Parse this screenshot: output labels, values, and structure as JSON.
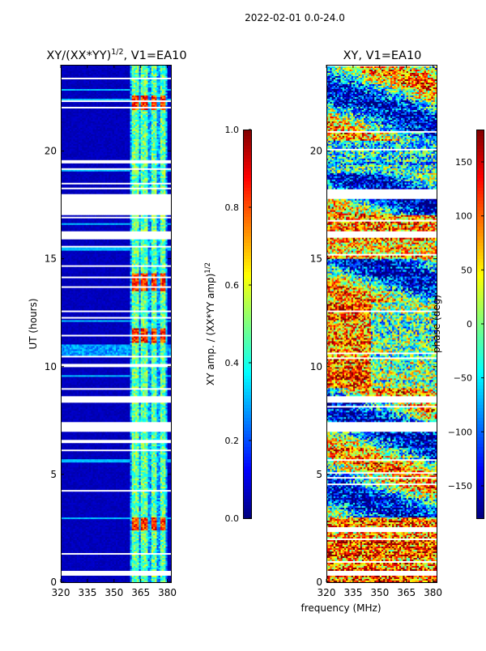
{
  "figure": {
    "suptitle": "2022-02-01 0.0-24.0",
    "shared_xlabel": "frequency (MHz)"
  },
  "colors": {
    "jet": [
      "#00007f",
      "#0000ff",
      "#007fff",
      "#00ffff",
      "#7fff7f",
      "#ffff00",
      "#ff7f00",
      "#ff0000",
      "#7f0000"
    ],
    "axis": "#000000",
    "gap": "#ffffff"
  },
  "chart_data": [
    {
      "type": "heatmap",
      "title_main": "XY/(XX*YY)",
      "title_exp": "1/2",
      "title_tail": ", V1=EA10",
      "xlabel": "",
      "ylabel": "UT (hours)",
      "xlim": [
        320,
        382
      ],
      "ylim": [
        0,
        24
      ],
      "xticks": [
        320,
        335,
        350,
        365,
        380
      ],
      "xtick_labels": [
        "320",
        "335",
        "350",
        "365",
        "380"
      ],
      "yticks": [
        0,
        5,
        10,
        15,
        20
      ],
      "ytick_labels": [
        "0",
        "5",
        "10",
        "15",
        "20"
      ],
      "bright_channel_ranges_mhz": [
        [
          360,
          364
        ],
        [
          365,
          369
        ],
        [
          371,
          374
        ],
        [
          376,
          379
        ]
      ],
      "high_amplitude_hours": [
        [
          2.4,
          3.0
        ],
        [
          13.5,
          14.3
        ],
        [
          11.1,
          11.8
        ],
        [
          21.9,
          22.6
        ]
      ],
      "flagged_hours": [
        [
          16.0,
          16.3
        ],
        [
          17.0,
          18.0
        ],
        [
          19.4,
          19.6
        ],
        [
          8.3,
          8.6
        ],
        [
          7.0,
          7.4
        ],
        [
          0.3,
          0.5
        ],
        [
          10.0,
          10.1
        ],
        [
          12.5,
          12.6
        ],
        [
          4.2,
          4.3
        ]
      ],
      "colorbar": {
        "label_main": "XY amp. / (XX*YY amp)",
        "label_exp": "1/2",
        "ticks": [
          0.0,
          0.2,
          0.4,
          0.6,
          0.8,
          1.0
        ],
        "tick_labels": [
          "0.0",
          "0.2",
          "0.4",
          "0.6",
          "0.8",
          "1.0"
        ],
        "range": [
          0,
          1
        ]
      }
    },
    {
      "type": "heatmap",
      "title": "XY, V1=EA10",
      "xlabel": "frequency (MHz)",
      "ylabel": "",
      "xlim": [
        320,
        382
      ],
      "ylim": [
        0,
        24
      ],
      "xticks": [
        320,
        335,
        350,
        365,
        380
      ],
      "xtick_labels": [
        "320",
        "335",
        "350",
        "365",
        "380"
      ],
      "yticks": [
        0,
        5,
        10,
        15,
        20
      ],
      "ytick_labels": [
        "0",
        "5",
        "10",
        "15",
        "20"
      ],
      "flagged_hours": [
        [
          17.8,
          18.2
        ],
        [
          8.3,
          8.6
        ],
        [
          7.0,
          7.4
        ],
        [
          0.3,
          0.5
        ],
        [
          16.0,
          16.3
        ]
      ],
      "colorbar": {
        "label": "phase (deg)",
        "ticks": [
          -150,
          -100,
          -50,
          0,
          50,
          100,
          150
        ],
        "tick_labels": [
          "−150",
          "−100",
          "−50",
          "0",
          "50",
          "100",
          "150"
        ],
        "range": [
          -180,
          180
        ]
      }
    }
  ]
}
